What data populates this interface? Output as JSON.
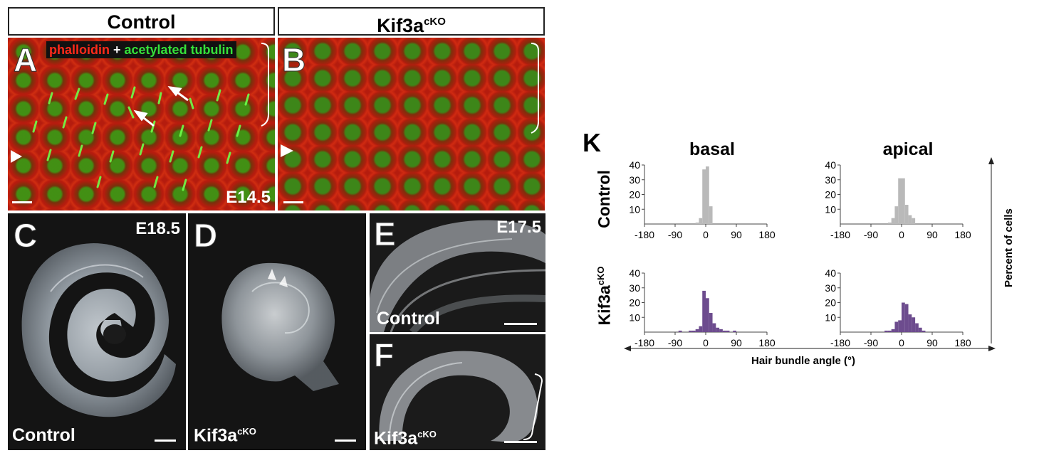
{
  "headers": {
    "control": "Control",
    "kif3a_base": "Kif3a",
    "kif3a_sup": "cKO"
  },
  "panels": {
    "A": {
      "letter": "A",
      "stain_red": "phalloidin",
      "stain_plus": " + ",
      "stain_green": "acetylated tubulin",
      "stage": "E14.5"
    },
    "B": {
      "letter": "B"
    },
    "C": {
      "letter": "C",
      "stage": "E18.5",
      "caption": "Control"
    },
    "D": {
      "letter": "D",
      "caption_base": "Kif3a",
      "caption_sup": "cKO"
    },
    "E": {
      "letter": "E",
      "stage": "E17.5",
      "caption": "Control"
    },
    "F": {
      "letter": "F",
      "caption_base": "Kif3a",
      "caption_sup": "cKO"
    }
  },
  "colors": {
    "phalloidin_red": "#ff2a1a",
    "tubulin_green": "#35e03a",
    "control_bars": "#b9b9b9",
    "kif3a_bars": "#6d4c8e"
  },
  "chart_data": {
    "type": "bar",
    "panel_letter": "K",
    "column_titles": [
      "basal",
      "apical"
    ],
    "row_labels": [
      {
        "base": "Control",
        "sup": ""
      },
      {
        "base": "Kif3a",
        "sup": "cKO"
      }
    ],
    "xlabel": "Hair bundle angle (°)",
    "ylabel": "Percent of cells",
    "xlim": [
      -180,
      180
    ],
    "ylim": [
      0,
      40
    ],
    "x_ticks": [
      -180,
      -90,
      0,
      90,
      180
    ],
    "y_ticks": [
      10,
      20,
      30,
      40
    ],
    "bin_width": 10,
    "panels": [
      {
        "row": "Control",
        "column": "basal",
        "color": "#b9b9b9",
        "bins": [
          -25,
          -15,
          -5,
          5,
          15
        ],
        "values": [
          1,
          4,
          37,
          39,
          12
        ]
      },
      {
        "row": "Control",
        "column": "apical",
        "color": "#b9b9b9",
        "bins": [
          -35,
          -25,
          -15,
          -5,
          5,
          15,
          25,
          35
        ],
        "values": [
          1,
          4,
          12,
          31,
          31,
          13,
          6,
          4
        ]
      },
      {
        "row": "Kif3a cKO",
        "column": "basal",
        "color": "#6d4c8e",
        "bins": [
          -75,
          -45,
          -35,
          -25,
          -15,
          -5,
          5,
          15,
          25,
          35,
          45,
          55,
          65,
          85
        ],
        "values": [
          1,
          1,
          1,
          2,
          4,
          28,
          23,
          13,
          6,
          3,
          2,
          1,
          1,
          1
        ]
      },
      {
        "row": "Kif3a cKO",
        "column": "apical",
        "color": "#6d4c8e",
        "bins": [
          -45,
          -35,
          -25,
          -15,
          -5,
          5,
          15,
          25,
          35,
          45,
          55,
          65
        ],
        "values": [
          1,
          1,
          2,
          7,
          8,
          20,
          19,
          12,
          10,
          6,
          3,
          1
        ]
      }
    ]
  }
}
